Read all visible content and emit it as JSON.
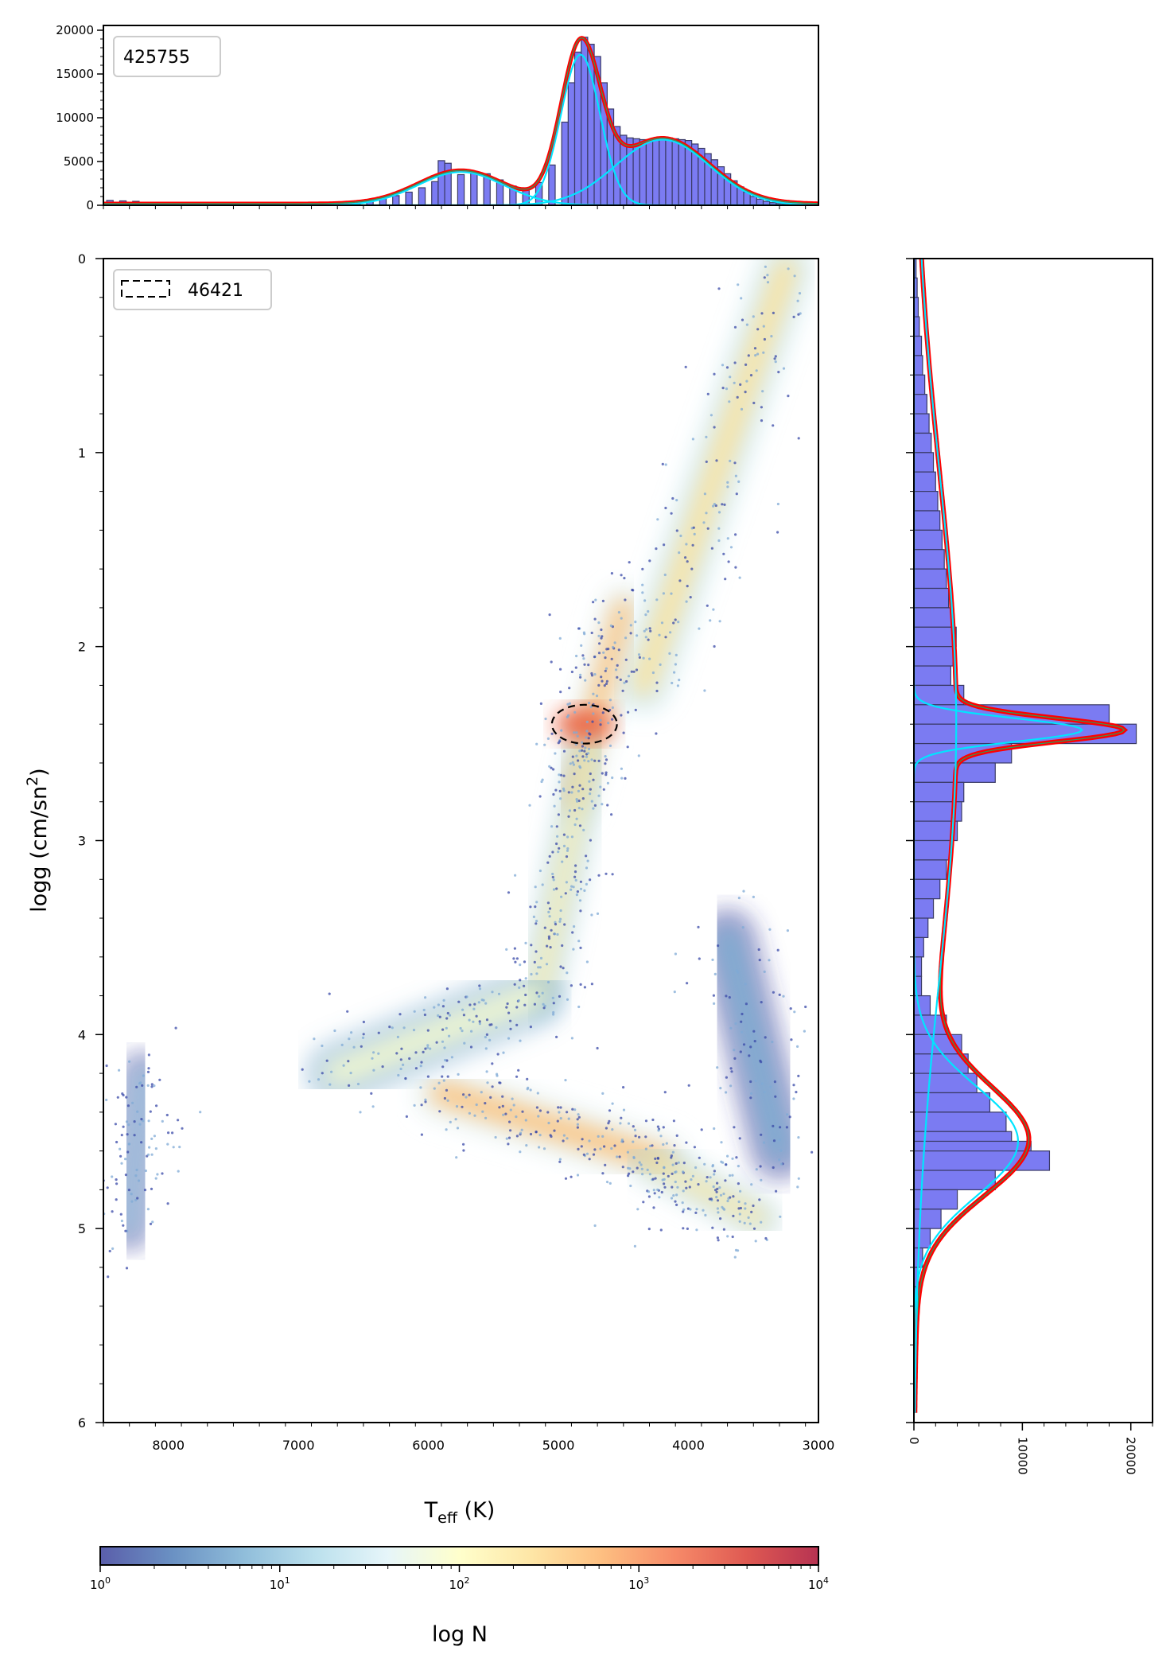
{
  "chart_data": [
    {
      "id": "top_histogram",
      "type": "bar",
      "xlim": [
        8500,
        3000
      ],
      "ylim": [
        0,
        20000
      ],
      "yticks": [
        0,
        5000,
        10000,
        15000,
        20000
      ],
      "ytick_labels": [
        "0",
        "5000",
        "10000",
        "15000",
        "20000"
      ],
      "legend": "top-left",
      "legend_text": "425755",
      "bar_color": "#7b7bf2",
      "bins": [
        [
          8450,
          550
        ],
        [
          8350,
          500
        ],
        [
          8250,
          450
        ],
        [
          8150,
          350
        ],
        [
          8050,
          250
        ],
        [
          7950,
          200
        ],
        [
          7850,
          200
        ],
        [
          7750,
          200
        ],
        [
          7650,
          200
        ],
        [
          7550,
          200
        ],
        [
          7450,
          200
        ],
        [
          7350,
          200
        ],
        [
          7250,
          200
        ],
        [
          7150,
          200
        ],
        [
          7050,
          200
        ],
        [
          6950,
          200
        ],
        [
          6850,
          250
        ],
        [
          6750,
          300
        ],
        [
          6650,
          350
        ],
        [
          6550,
          450
        ],
        [
          6450,
          600
        ],
        [
          6350,
          800
        ],
        [
          6250,
          1100
        ],
        [
          6150,
          1500
        ],
        [
          6050,
          2000
        ],
        [
          5950,
          2700
        ],
        [
          5900,
          5100
        ],
        [
          5850,
          4800
        ],
        [
          5750,
          3500
        ],
        [
          5650,
          3800
        ],
        [
          5550,
          3600
        ],
        [
          5450,
          2900
        ],
        [
          5350,
          2200
        ],
        [
          5250,
          2000
        ],
        [
          5150,
          2600
        ],
        [
          5050,
          4600
        ],
        [
          4950,
          9500
        ],
        [
          4900,
          14000
        ],
        [
          4850,
          17500
        ],
        [
          4800,
          19200
        ],
        [
          4750,
          18400
        ],
        [
          4700,
          17000
        ],
        [
          4650,
          14000
        ],
        [
          4600,
          11000
        ],
        [
          4550,
          9000
        ],
        [
          4500,
          8000
        ],
        [
          4450,
          7700
        ],
        [
          4400,
          7600
        ],
        [
          4350,
          7500
        ],
        [
          4300,
          7500
        ],
        [
          4250,
          7600
        ],
        [
          4200,
          7600
        ],
        [
          4150,
          7700
        ],
        [
          4100,
          7600
        ],
        [
          4050,
          7500
        ],
        [
          4000,
          7400
        ],
        [
          3950,
          7000
        ],
        [
          3900,
          6500
        ],
        [
          3850,
          5900
        ],
        [
          3800,
          5200
        ],
        [
          3750,
          4400
        ],
        [
          3700,
          3600
        ],
        [
          3650,
          2800
        ],
        [
          3600,
          2100
        ],
        [
          3550,
          1500
        ],
        [
          3500,
          1000
        ],
        [
          3450,
          700
        ],
        [
          3400,
          450
        ],
        [
          3350,
          300
        ],
        [
          3300,
          200
        ],
        [
          3250,
          120
        ],
        [
          3200,
          80
        ]
      ],
      "gaussians": [
        {
          "color": "#00e5ff",
          "mu": 5750,
          "sigma": 330,
          "amp": 3800
        },
        {
          "color": "#00e5ff",
          "mu": 4830,
          "sigma": 150,
          "amp": 17200
        },
        {
          "color": "#00e5ff",
          "mu": 4200,
          "sigma": 360,
          "amp": 7500
        }
      ],
      "total_fit_color": "#ff0000",
      "green_fit_color": "#2e9c58"
    },
    {
      "id": "main_density",
      "type": "scatter",
      "xlabel": "T",
      "xlabel_sub": "eff",
      "xlabel_unit": " (K)",
      "ylabel": "logg (cm/sn",
      "ylabel_sup": "2",
      "ylabel_end": ")",
      "xlim": [
        8500,
        3000
      ],
      "ylim": [
        6,
        0
      ],
      "xticks": [
        8000,
        7000,
        6000,
        5000,
        4000,
        3000
      ],
      "xtick_labels": [
        "8000",
        "7000",
        "6000",
        "5000",
        "4000",
        "3000"
      ],
      "yticks": [
        0,
        1,
        2,
        3,
        4,
        5,
        6
      ],
      "ytick_labels": [
        "0",
        "1",
        "2",
        "3",
        "4",
        "5",
        "6"
      ],
      "legend": "top-left",
      "legend_text": "46421",
      "ellipse": {
        "teff": 4800,
        "logg": 2.4,
        "dteff": 250,
        "dlogg": 0.1
      },
      "density_bands": [
        {
          "teff1": 3250,
          "logg1": 0.05,
          "teff2": 4350,
          "logg2": 2.2,
          "log_n": 2.4,
          "width": 220
        },
        {
          "teff1": 4500,
          "logg1": 1.8,
          "teff2": 4900,
          "logg2": 2.8,
          "log_n": 2.7,
          "width": 190
        },
        {
          "teff1": 4750,
          "logg1": 2.5,
          "teff2": 5150,
          "logg2": 3.8,
          "log_n": 2.2,
          "width": 170
        },
        {
          "teff1": 5200,
          "logg1": 3.8,
          "teff2": 6700,
          "logg2": 4.2,
          "log_n": 1.9,
          "width": 260
        },
        {
          "teff1": 5900,
          "logg1": 4.3,
          "teff2": 4200,
          "logg2": 4.65,
          "log_n": 2.7,
          "width": 230
        },
        {
          "teff1": 4300,
          "logg1": 4.65,
          "teff2": 3450,
          "logg2": 4.95,
          "log_n": 2.3,
          "width": 170
        },
        {
          "teff1": 8200,
          "logg1": 4.2,
          "teff2": 8300,
          "logg2": 5.0,
          "log_n": 1.1,
          "width": 180
        },
        {
          "teff1": 3700,
          "logg1": 3.5,
          "teff2": 3300,
          "logg2": 4.6,
          "log_n": 0.8,
          "width": 240
        }
      ]
    },
    {
      "id": "right_histogram",
      "type": "bar",
      "orientation": "horizontal",
      "xlim": [
        0,
        22000
      ],
      "xticks": [
        0,
        10000,
        20000
      ],
      "xtick_labels": [
        "0",
        "10000",
        "20000"
      ],
      "ylim": [
        6,
        0
      ],
      "bar_color": "#7b7bf2",
      "bins": [
        [
          0.05,
          200
        ],
        [
          0.15,
          300
        ],
        [
          0.25,
          400
        ],
        [
          0.35,
          500
        ],
        [
          0.45,
          700
        ],
        [
          0.55,
          800
        ],
        [
          0.65,
          1000
        ],
        [
          0.75,
          1200
        ],
        [
          0.85,
          1400
        ],
        [
          0.95,
          1600
        ],
        [
          1.05,
          1800
        ],
        [
          1.15,
          2000
        ],
        [
          1.25,
          2200
        ],
        [
          1.35,
          2400
        ],
        [
          1.45,
          2600
        ],
        [
          1.55,
          2800
        ],
        [
          1.65,
          3000
        ],
        [
          1.75,
          3200
        ],
        [
          1.85,
          3600
        ],
        [
          1.95,
          3900
        ],
        [
          2.05,
          3600
        ],
        [
          2.15,
          3400
        ],
        [
          2.25,
          4600
        ],
        [
          2.35,
          18000
        ],
        [
          2.45,
          20500
        ],
        [
          2.55,
          9000
        ],
        [
          2.65,
          7500
        ],
        [
          2.75,
          4600
        ],
        [
          2.85,
          4400
        ],
        [
          2.95,
          4000
        ],
        [
          3.05,
          3500
        ],
        [
          3.15,
          3000
        ],
        [
          3.25,
          2400
        ],
        [
          3.35,
          1800
        ],
        [
          3.45,
          1300
        ],
        [
          3.55,
          900
        ],
        [
          3.65,
          700
        ],
        [
          3.75,
          700
        ],
        [
          3.85,
          1500
        ],
        [
          3.95,
          3000
        ],
        [
          4.05,
          4400
        ],
        [
          4.15,
          5000
        ],
        [
          4.25,
          5800
        ],
        [
          4.35,
          7000
        ],
        [
          4.45,
          8500
        ],
        [
          4.55,
          9000
        ],
        [
          4.6,
          10800
        ],
        [
          4.65,
          12500
        ],
        [
          4.75,
          7500
        ],
        [
          4.85,
          4000
        ],
        [
          4.95,
          2500
        ],
        [
          5.05,
          1500
        ],
        [
          5.15,
          800
        ],
        [
          5.25,
          400
        ],
        [
          5.35,
          200
        ],
        [
          5.45,
          100
        ]
      ],
      "gaussians": [
        {
          "color": "#00e5ff",
          "mu": 2.43,
          "sigma": 0.06,
          "amp": 15500
        },
        {
          "color": "#00e5ff",
          "mu": 4.55,
          "sigma": 0.28,
          "amp": 9600
        },
        {
          "color": "#00e5ff",
          "mu": 2.4,
          "sigma": 1.3,
          "amp": 3900
        }
      ],
      "total_fit_color": "#ff0000",
      "green_fit_color": "#2e9c58"
    },
    {
      "id": "colorbar",
      "type": "heatmap",
      "label": "log N",
      "scale": "log",
      "range": [
        1,
        10000
      ],
      "tick_labels": [
        {
          "base": "10",
          "exp": "0"
        },
        {
          "base": "10",
          "exp": "1"
        },
        {
          "base": "10",
          "exp": "2"
        },
        {
          "base": "10",
          "exp": "3"
        },
        {
          "base": "10",
          "exp": "4"
        }
      ],
      "colormap": [
        "#313695",
        "#4575b4",
        "#74add1",
        "#abd9e9",
        "#e0f3f8",
        "#ffffbf",
        "#fee090",
        "#fdae61",
        "#f46d43",
        "#d73027",
        "#a50026"
      ]
    }
  ]
}
